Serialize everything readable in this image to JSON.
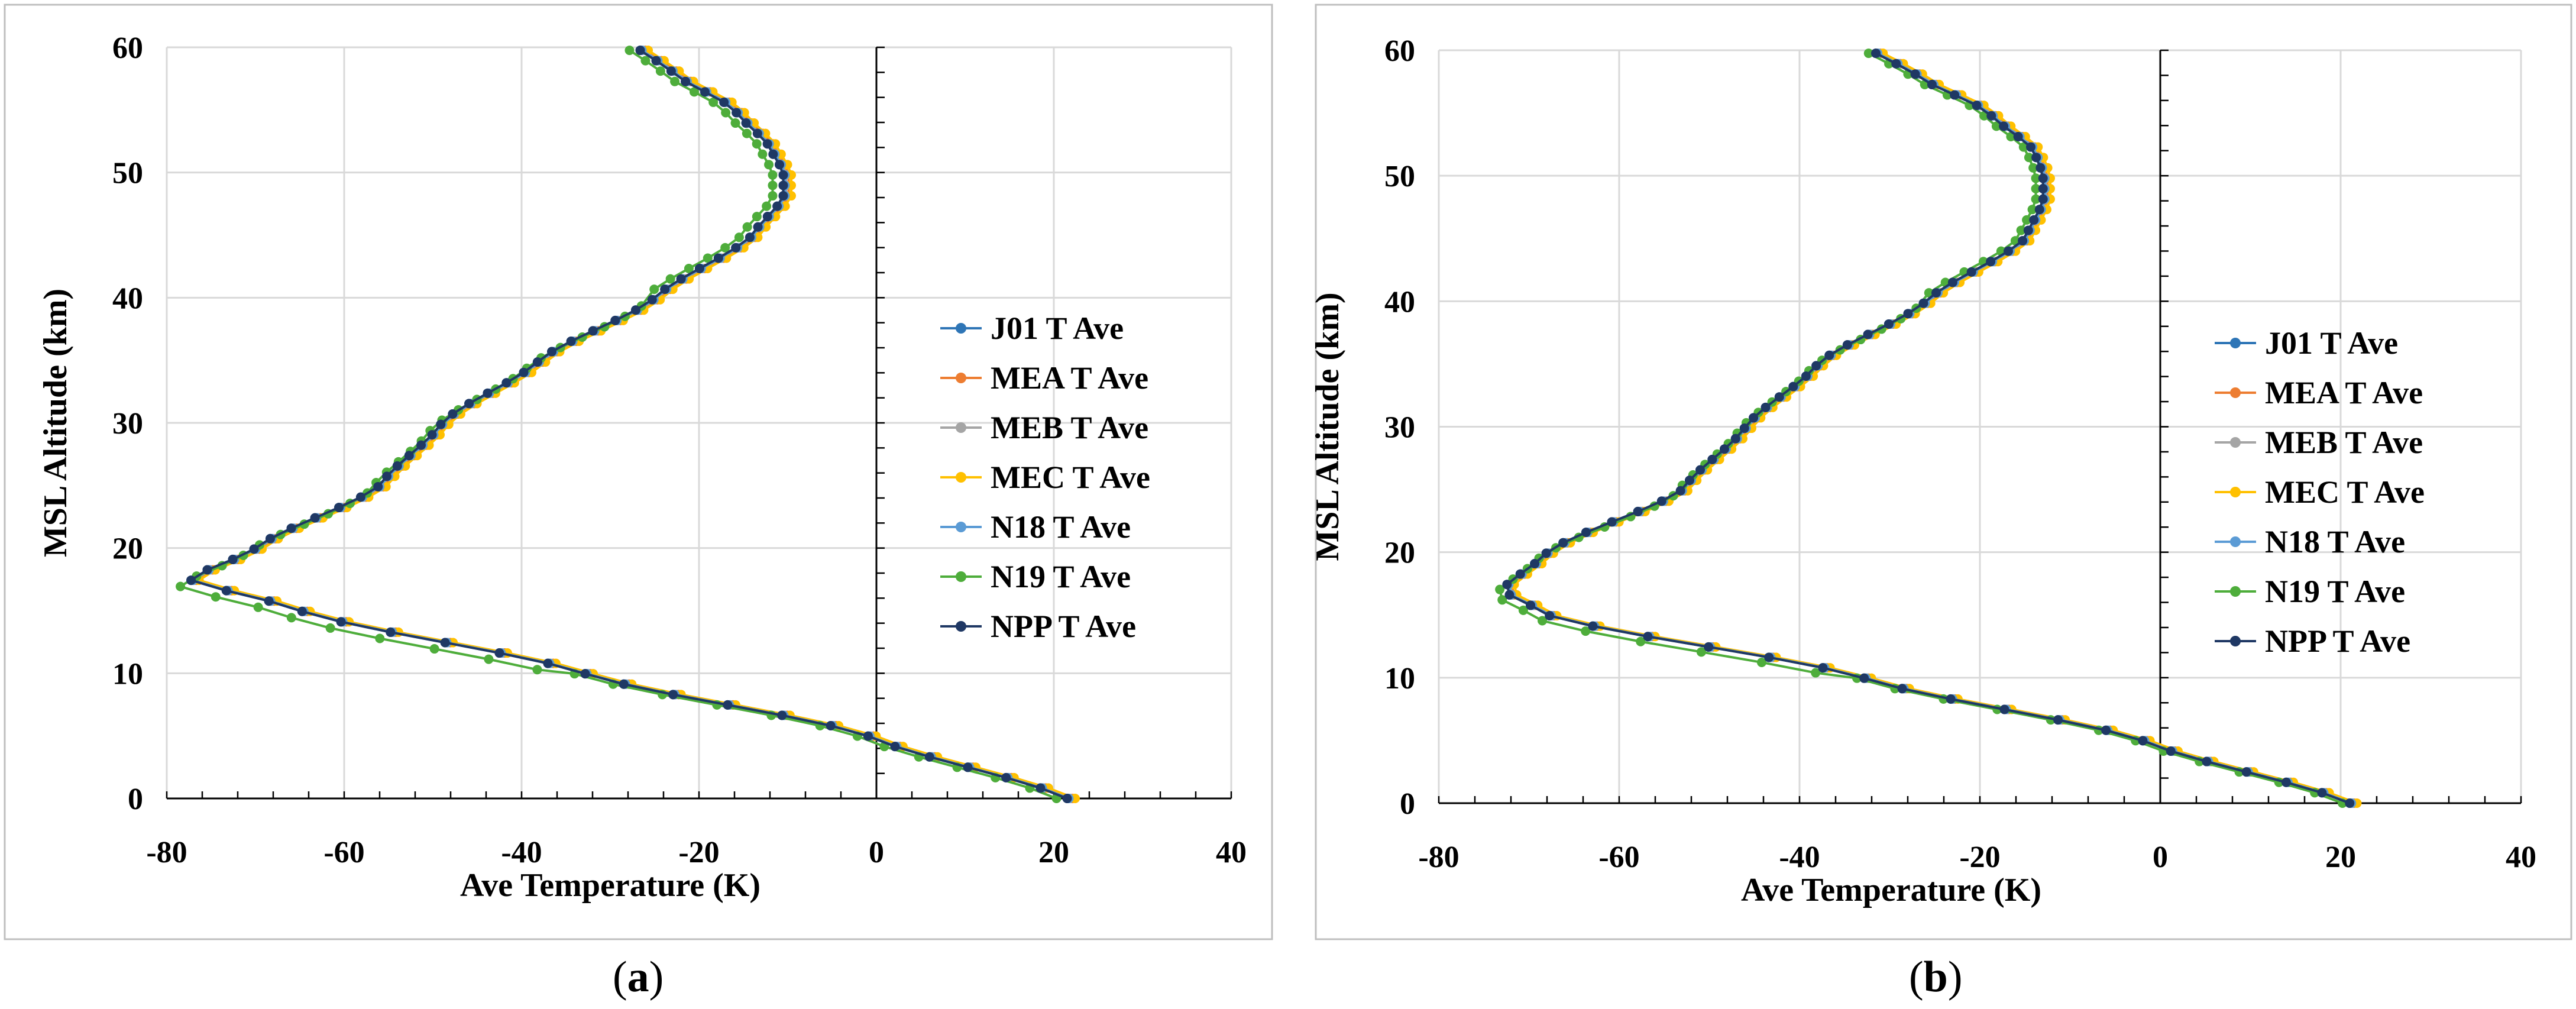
{
  "chart_data": [
    {
      "panel_label": "a",
      "type": "line",
      "xlabel": "Ave Temperature (K)",
      "ylabel": "MSL Altitude (km)",
      "xlim": [
        -80,
        40
      ],
      "ylim": [
        0,
        60
      ],
      "xticks": [
        -80,
        -60,
        -40,
        -20,
        0,
        20,
        40
      ],
      "yticks": [
        0,
        10,
        20,
        30,
        40,
        50,
        60
      ],
      "grid": true,
      "legend_position": "right-center",
      "profile": {
        "altitude": [
          0,
          5,
          10,
          15,
          17.5,
          20,
          25,
          30,
          35,
          40,
          45,
          48,
          50,
          52,
          55,
          58,
          60
        ],
        "temperature": [
          21.5,
          -1,
          -33,
          -65,
          -77.5,
          -70,
          -56,
          -49,
          -38,
          -25,
          -14,
          -10.5,
          -10.5,
          -12,
          -16,
          -23,
          -27
        ]
      },
      "series": [
        {
          "name": "J01 T Ave",
          "color": "#2E75B6",
          "dx": 0,
          "dy": 0
        },
        {
          "name": "MEA T Ave",
          "color": "#ED7D31",
          "dx": 0.6,
          "dy": 0
        },
        {
          "name": "MEB T Ave",
          "color": "#A5A5A5",
          "dx": 0.3,
          "dy": 0
        },
        {
          "name": "MEC T Ave",
          "color": "#FFC000",
          "dx": 0.9,
          "dy": 0
        },
        {
          "name": "N18 T Ave",
          "color": "#5B9BD5",
          "dx": 0.2,
          "dy": 0
        },
        {
          "name": "N19 T Ave",
          "color": "#4EAD3B",
          "dx": -1.2,
          "dy": -0.5
        },
        {
          "name": "NPP T Ave",
          "color": "#1F3864",
          "dx": 0,
          "dy": 0
        }
      ]
    },
    {
      "panel_label": "b",
      "type": "line",
      "xlabel": "Ave Temperature (K)",
      "ylabel": "MSL Altitude (km)",
      "xlim": [
        -80,
        40
      ],
      "ylim": [
        0,
        60
      ],
      "xticks": [
        -80,
        -60,
        -40,
        -20,
        0,
        20,
        40
      ],
      "yticks": [
        0,
        10,
        20,
        30,
        40,
        50,
        60
      ],
      "grid": true,
      "legend_position": "right-center",
      "profile": {
        "altitude": [
          0,
          5,
          10,
          15,
          17,
          20,
          25,
          30,
          35,
          40,
          45,
          48,
          50,
          52,
          55,
          58,
          60
        ],
        "temperature": [
          21,
          -2,
          -33,
          -68,
          -73,
          -68,
          -53,
          -46,
          -38,
          -26,
          -15,
          -13,
          -13,
          -14,
          -19,
          -27,
          -32
        ]
      },
      "series": [
        {
          "name": "J01 T Ave",
          "color": "#2E75B6",
          "dx": 0,
          "dy": 0
        },
        {
          "name": "MEA T Ave",
          "color": "#ED7D31",
          "dx": 0.5,
          "dy": 0
        },
        {
          "name": "MEB T Ave",
          "color": "#A5A5A5",
          "dx": 0.3,
          "dy": 0
        },
        {
          "name": "MEC T Ave",
          "color": "#FFC000",
          "dx": 0.8,
          "dy": 0
        },
        {
          "name": "N18 T Ave",
          "color": "#5B9BD5",
          "dx": 0.2,
          "dy": 0
        },
        {
          "name": "N19 T Ave",
          "color": "#4EAD3B",
          "dx": -0.8,
          "dy": -0.4
        },
        {
          "name": "NPP T Ave",
          "color": "#1F3864",
          "dx": 0,
          "dy": 0
        }
      ]
    }
  ]
}
